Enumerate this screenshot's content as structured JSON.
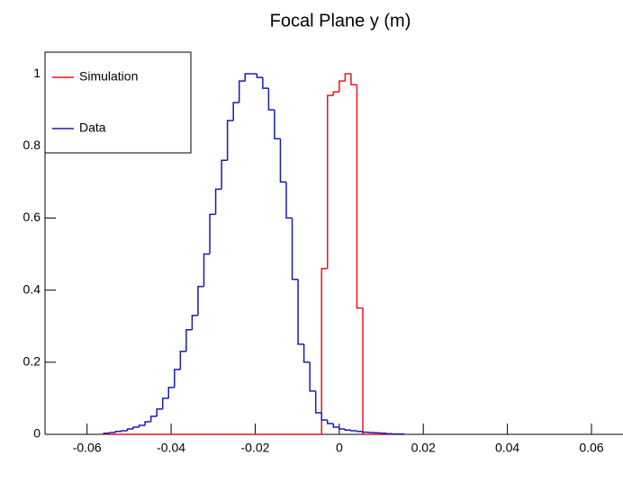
{
  "chart_data": {
    "type": "histogram",
    "title": "Focal Plane y (m)",
    "bins": [
      -0.056,
      -0.0546,
      -0.0532,
      -0.0518,
      -0.0504,
      -0.049,
      -0.0476,
      -0.0462,
      -0.0448,
      -0.0434,
      -0.042,
      -0.0406,
      -0.0392,
      -0.0378,
      -0.0364,
      -0.035,
      -0.0336,
      -0.0322,
      -0.0308,
      -0.0294,
      -0.028,
      -0.0266,
      -0.0252,
      -0.0238,
      -0.0224,
      -0.021,
      -0.0196,
      -0.0182,
      -0.0168,
      -0.0154,
      -0.014,
      -0.0126,
      -0.0112,
      -0.0098,
      -0.0084,
      -0.007,
      -0.0056,
      -0.0042,
      -0.0028,
      -0.0014,
      0,
      0.0014,
      0.0028,
      0.0042,
      0.0056,
      0.007,
      0.0084,
      0.0098,
      0.0112,
      0.0126,
      0.014,
      0.0154
    ],
    "series": [
      {
        "name": "Simulation",
        "color": "#e8141e",
        "values": [
          0,
          0,
          0,
          0,
          0,
          0,
          0,
          0,
          0,
          0,
          0,
          0,
          0,
          0,
          0,
          0,
          0,
          0,
          0,
          0,
          0,
          0,
          0,
          0,
          0,
          0,
          0,
          0,
          0,
          0,
          0,
          0,
          0,
          0,
          0,
          0,
          0,
          0.46,
          0.94,
          0.95,
          0.98,
          1.0,
          0.97,
          0.35,
          0,
          0,
          0,
          0,
          0,
          0,
          0
        ]
      },
      {
        "name": "Data",
        "color": "#1a1ab4",
        "values": [
          0.003,
          0.005,
          0.008,
          0.01,
          0.015,
          0.02,
          0.025,
          0.035,
          0.05,
          0.07,
          0.1,
          0.13,
          0.18,
          0.23,
          0.29,
          0.33,
          0.41,
          0.5,
          0.61,
          0.68,
          0.76,
          0.87,
          0.92,
          0.98,
          1.0,
          1.0,
          0.99,
          0.96,
          0.9,
          0.82,
          0.7,
          0.6,
          0.43,
          0.25,
          0.2,
          0.12,
          0.06,
          0.04,
          0.03,
          0.02,
          0.015,
          0.012,
          0.01,
          0.008,
          0.006,
          0.005,
          0.004,
          0.003,
          0.002,
          0.001,
          0.001
        ]
      }
    ],
    "xlim": [
      -0.07,
      0.0675
    ],
    "xticks": [
      -0.06,
      -0.04,
      -0.02,
      0,
      0.02,
      0.04,
      0.06
    ],
    "ylim": [
      0,
      1.06
    ],
    "yticks": [
      0,
      0.2,
      0.4,
      0.6,
      0.8,
      1
    ],
    "legend": "upper left"
  }
}
